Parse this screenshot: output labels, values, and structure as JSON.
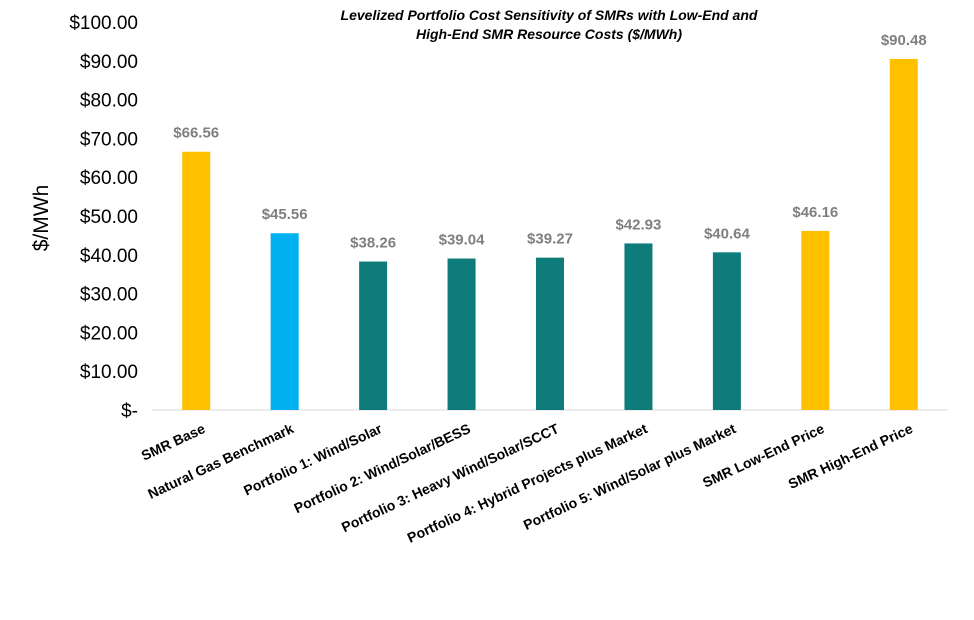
{
  "chart_data": {
    "type": "bar",
    "title": "Levelized Portfolio Cost Sensitivity of SMRs with Low-End and High-End SMR Resource Costs ($/MWh)",
    "title_lines": [
      "Levelized Portfolio Cost Sensitivity of SMRs with Low-End and",
      "High-End SMR Resource Costs ($/MWh)"
    ],
    "ylabel": "$/MWh",
    "xlabel": "",
    "ylim": [
      0,
      100
    ],
    "yticks": [
      0,
      10,
      20,
      30,
      40,
      50,
      60,
      70,
      80,
      90,
      100
    ],
    "ytick_labels": [
      "$-",
      "$10.00",
      "$20.00",
      "$30.00",
      "$40.00",
      "$50.00",
      "$60.00",
      "$70.00",
      "$80.00",
      "$90.00",
      "$100.00"
    ],
    "categories": [
      "SMR Base",
      "Natural Gas Benchmark",
      "Portfolio 1: Wind/Solar",
      "Portfolio 2: Wind/Solar/BESS",
      "Portfolio 3: Heavy Wind/Solar/SCCT",
      "Portfolio 4: Hybrid Projects plus Market",
      "Portfolio 5: Wind/Solar plus Market",
      "SMR Low-End Price",
      "SMR High-End Price"
    ],
    "values": [
      66.56,
      45.56,
      38.26,
      39.04,
      39.27,
      42.93,
      40.64,
      46.16,
      90.48
    ],
    "data_labels": [
      "$66.56",
      "$45.56",
      "$38.26",
      "$39.04",
      "$39.27",
      "$42.93",
      "$40.64",
      "$46.16",
      "$90.48"
    ],
    "bar_colors": [
      "#FFC000",
      "#00B0F0",
      "#0E7C7B",
      "#0E7C7B",
      "#0E7C7B",
      "#0E7C7B",
      "#0E7C7B",
      "#FFC000",
      "#FFC000"
    ],
    "grid": false,
    "legend": "none"
  }
}
